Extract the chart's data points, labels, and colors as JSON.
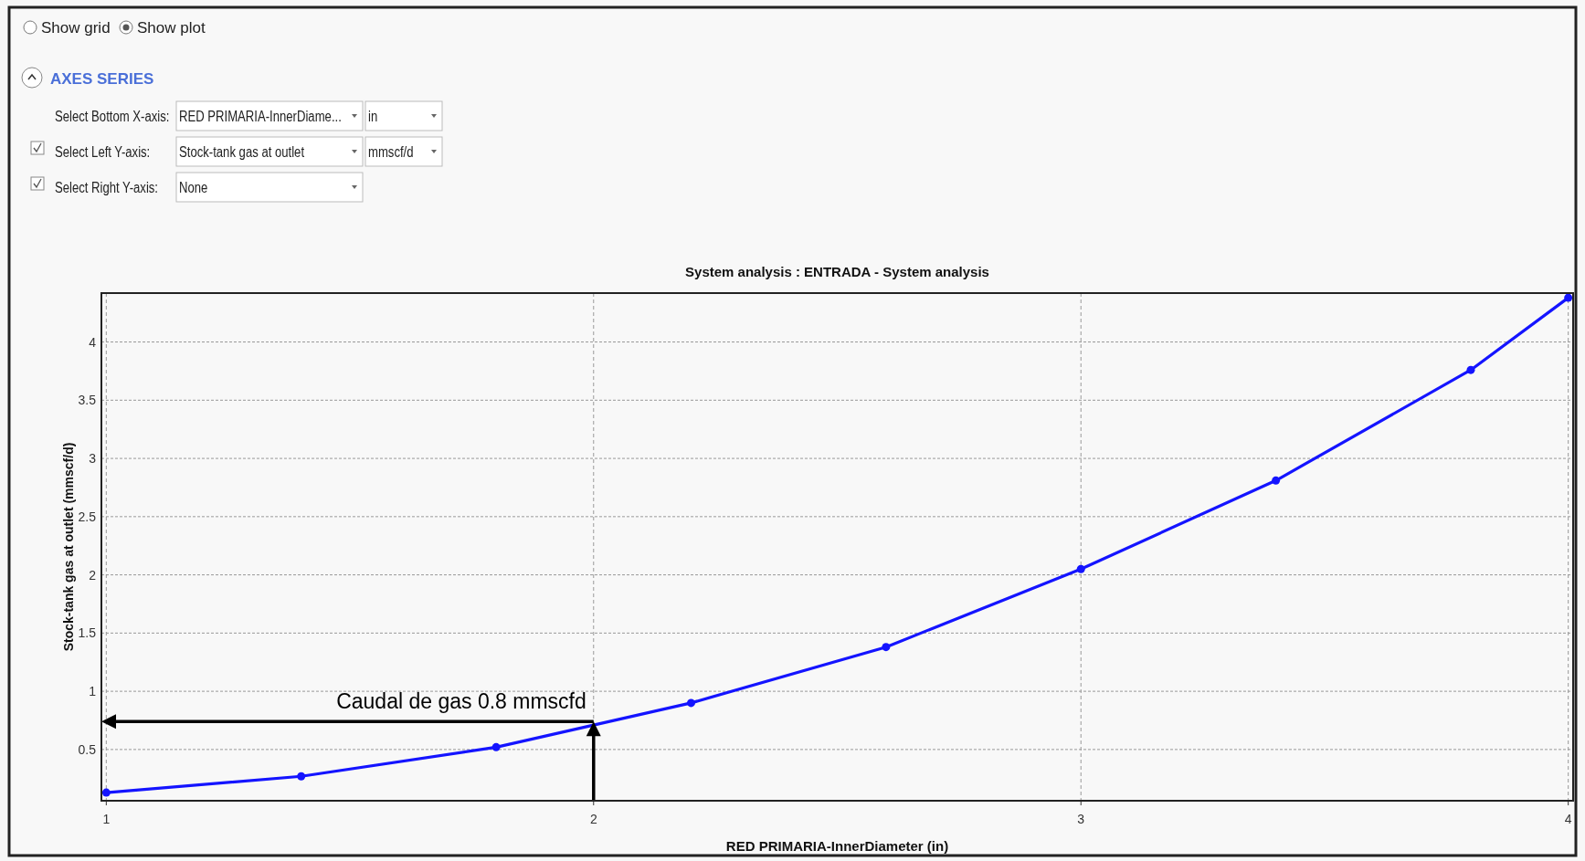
{
  "chart_data": {
    "type": "line",
    "title": "System analysis : ENTRADA - System analysis",
    "xlabel": "RED PRIMARIA-InnerDiameter (in)",
    "ylabel": "Stock-tank gas at outlet (mmscf/d)",
    "x": [
      1,
      1.4,
      1.8,
      2.2,
      2.6,
      3,
      3.4,
      3.8,
      4
    ],
    "series": [
      {
        "color": "#1414ff",
        "values": [
          0.13,
          0.27,
          0.52,
          0.9,
          1.38,
          2.05,
          2.81,
          3.76,
          4.38
        ]
      }
    ],
    "xlim": [
      0.99,
      4.01
    ],
    "xticks": [
      1,
      2,
      3,
      4
    ],
    "ylim": [
      0.06,
      4.42
    ],
    "yticks": [
      0.5,
      1,
      1.5,
      2,
      2.5,
      3,
      3.5,
      4
    ],
    "grid": true,
    "marker": "circle",
    "line_style": "solid",
    "annotations": [
      "Show grid",
      "Show plot",
      "AXES SERIES",
      "Select Bottom X-axis:",
      "RED PRIMARIA-InnerDiame...",
      "in",
      "Select Left Y-axis:",
      "Stock-tank gas at outlet",
      "mmscf/d",
      "Select Right Y-axis:",
      "None",
      {
        "text": "Caudal de gas 0.8 mmscfd",
        "x": 2,
        "y": 0.74
      }
    ]
  }
}
